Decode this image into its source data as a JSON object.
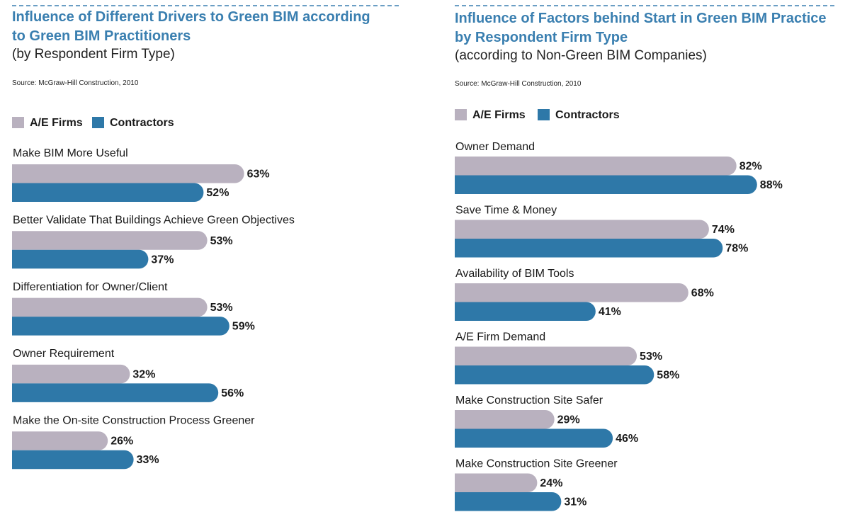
{
  "chart_data": [
    {
      "type": "bar",
      "orientation": "horizontal",
      "title": "Influence of Different Drivers to Green BIM according to Green BIM Practitioners",
      "subtitle": "(by Respondent Firm Type)",
      "source": "Source: McGraw-Hill Construction, 2010",
      "categories": [
        "Make BIM More Useful",
        "Better Validate That Buildings Achieve Green Objectives",
        "Differentiation for Owner/Client",
        "Owner Requirement",
        "Make the On-site Construction Process Greener"
      ],
      "series": [
        {
          "name": "A/E Firms",
          "color": "#b9b1bf",
          "values": [
            63,
            53,
            53,
            32,
            26
          ],
          "value_labels": [
            "63%",
            "53%",
            "53%",
            "32%",
            "26%"
          ]
        },
        {
          "name": "Contractors",
          "color": "#2e78a8",
          "values": [
            52,
            37,
            59,
            56,
            33
          ],
          "value_labels": [
            "52%",
            "37%",
            "59%",
            "56%",
            "33%"
          ]
        }
      ]
    },
    {
      "type": "bar",
      "orientation": "horizontal",
      "title": "Influence of Factors behind Start in Green BIM Practice by Respondent Firm Type",
      "subtitle": "(according to Non-Green BIM Companies)",
      "source": "Source: McGraw-Hill Construction, 2010",
      "categories": [
        "Owner Demand",
        "Save Time & Money",
        "Availability of BIM Tools",
        "A/E Firm Demand",
        "Make Construction Site Safer",
        "Make Construction Site Greener"
      ],
      "series": [
        {
          "name": "A/E Firms",
          "color": "#b9b1bf",
          "values": [
            82,
            74,
            68,
            53,
            29,
            24
          ],
          "value_labels": [
            "82%",
            "74%",
            "68%",
            "53%",
            "29%",
            "24%"
          ]
        },
        {
          "name": "Contractors",
          "color": "#2e78a8",
          "values": [
            88,
            78,
            41,
            58,
            46,
            31
          ],
          "value_labels": [
            "88%",
            "78%",
            "41%",
            "58%",
            "46%",
            "31%"
          ]
        }
      ]
    }
  ]
}
